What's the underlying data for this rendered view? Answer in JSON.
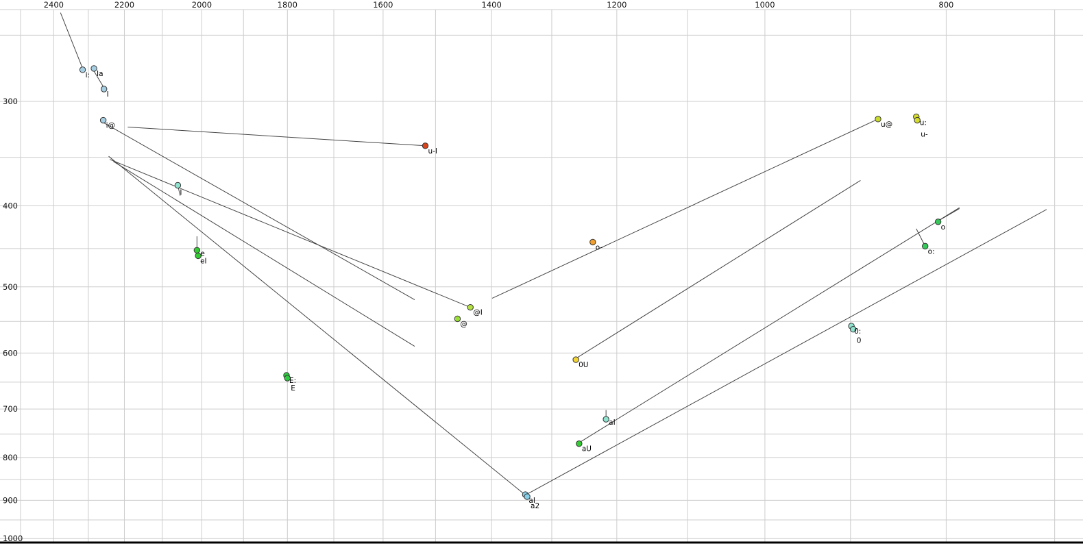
{
  "chart_data": {
    "type": "scatter",
    "title": "",
    "xlabel": "",
    "ylabel": "",
    "description": "Vowel formant plot: F2 (Hz) on reversed log x-axis, F1 (Hz) on reversed log y-axis; labelled vowel tokens with diphthong trajectory lines",
    "x_axis": {
      "scale": "log",
      "reversed": true,
      "domain": [
        2564,
        676
      ],
      "tick_labels": [
        2400,
        2200,
        2000,
        1800,
        1600,
        1400,
        1200,
        1000,
        800
      ],
      "grid_values": [
        2500,
        2400,
        2300,
        2200,
        2100,
        2000,
        1900,
        1800,
        1700,
        1600,
        1500,
        1400,
        1300,
        1200,
        1100,
        1000,
        900,
        800,
        700
      ]
    },
    "y_axis": {
      "scale": "log",
      "reversed": true,
      "domain": [
        233,
        1011
      ],
      "tick_labels": [
        300,
        400,
        500,
        600,
        700,
        800,
        900,
        1000
      ],
      "grid_values": [
        250,
        300,
        350,
        400,
        450,
        500,
        550,
        600,
        650,
        700,
        750,
        800,
        850,
        900,
        950,
        1000
      ]
    },
    "colors": {
      "grid": "#cccccc",
      "segment": "#444444",
      "tick_text": "#111111",
      "point_stroke": "#333333",
      "label_text": "#000000",
      "baseline": "#000000"
    },
    "points": [
      {
        "label": "i:",
        "f2": 2316,
        "f1": 275,
        "color": "#a6cee3"
      },
      {
        "label": "Ia",
        "f2": 2284,
        "f1": 274,
        "color": "#a6cee3"
      },
      {
        "label": "I",
        "f2": 2256,
        "f1": 290,
        "color": "#a6cee3"
      },
      {
        "label": "i@",
        "f2": 2258,
        "f1": 316,
        "color": "#a6cee3"
      },
      {
        "label": "u-I",
        "f2": 1519,
        "f1": 339,
        "color": "#d9441a"
      },
      {
        "label": "I",
        "f2": 2060,
        "f1": 378,
        "color": "#8fe3cf",
        "label_offset": [
          3,
          14
        ]
      },
      {
        "label": "e",
        "f2": 2012,
        "f1": 452,
        "color": "#33cc33",
        "label_offset": [
          5,
          8
        ]
      },
      {
        "label": "eI",
        "f2": 2009,
        "f1": 459,
        "color": "#33cc33",
        "label_offset": [
          3,
          11
        ]
      },
      {
        "label": "@I",
        "f2": 1437,
        "f1": 529,
        "color": "#b5e045"
      },
      {
        "label": "@",
        "f2": 1460,
        "f1": 546,
        "color": "#9be034"
      },
      {
        "label": "E:",
        "f2": 1802,
        "f1": 638,
        "color": "#2ecc40"
      },
      {
        "label": "E",
        "f2": 1800,
        "f1": 643,
        "color": "#2ecc40",
        "label_offset": [
          5,
          18
        ]
      },
      {
        "label": "o-",
        "f2": 1236,
        "f1": 442,
        "color": "#f0a030"
      },
      {
        "label": "0U",
        "f2": 1262,
        "f1": 611,
        "color": "#f2d434"
      },
      {
        "label": "aU",
        "f2": 1257,
        "f1": 770,
        "color": "#33cc33"
      },
      {
        "label": "aI",
        "f2": 1216,
        "f1": 720,
        "color": "#8fe3cf",
        "label_offset": [
          4,
          8
        ]
      },
      {
        "label": "aI",
        "f2": 1343,
        "f1": 886,
        "color": "#86cfe8",
        "label_offset": [
          5,
          12
        ]
      },
      {
        "label": "a2",
        "f2": 1340,
        "f1": 891,
        "color": "#86cfe8",
        "label_offset": [
          5,
          17
        ]
      },
      {
        "label": "u@",
        "f2": 870,
        "f1": 315,
        "color": "#c9dc2e"
      },
      {
        "label": "u:",
        "f2": 830,
        "f1": 313,
        "color": "#d4dc2e",
        "label_offset": [
          5,
          12
        ]
      },
      {
        "label": "u-",
        "f2": 829,
        "f1": 316,
        "color": "#d4dc2e",
        "label_offset": [
          5,
          24
        ]
      },
      {
        "label": "o",
        "f2": 808,
        "f1": 418,
        "color": "#35c95a"
      },
      {
        "label": "o:",
        "f2": 821,
        "f1": 447,
        "color": "#35c95a"
      },
      {
        "label": "0:",
        "f2": 899,
        "f1": 557,
        "color": "#8fe3cf"
      },
      {
        "label": "0",
        "f2": 897,
        "f1": 562,
        "color": "#8fe3cf",
        "label_offset": [
          5,
          20
        ]
      }
    ],
    "segments": [
      {
        "from": [
          2380,
          235
        ],
        "to": [
          2316,
          274
        ]
      },
      {
        "from": [
          2284,
          276
        ],
        "to": [
          2256,
          289
        ]
      },
      {
        "from": [
          1519,
          339
        ],
        "to": [
          2191,
          322
        ]
      },
      {
        "from": [
          1437,
          529
        ],
        "to": [
          2240,
          352
        ]
      },
      {
        "from": [
          2258,
          318
        ],
        "to": [
          1539,
          518
        ]
      },
      {
        "from": [
          2230,
          354
        ],
        "to": [
          1539,
          589
        ]
      },
      {
        "from": [
          2243,
          349
        ],
        "to": [
          1343,
          887
        ]
      },
      {
        "from": [
          2012,
          435
        ],
        "to": [
          2012,
          451
        ]
      },
      {
        "from": [
          2059,
          380
        ],
        "to": [
          2054,
          389
        ]
      },
      {
        "from": [
          1216,
          702
        ],
        "to": [
          1216,
          719
        ]
      },
      {
        "from": [
          830,
          426
        ],
        "to": [
          821,
          447
        ]
      },
      {
        "from": [
          808,
          417
        ],
        "to": [
          787,
          403
        ]
      },
      {
        "from": [
          870,
          315
        ],
        "to": [
          1399,
          516
        ]
      },
      {
        "from": [
          1262,
          609
        ],
        "to": [
          889,
          373
        ]
      },
      {
        "from": [
          1257,
          768
        ],
        "to": [
          787,
          402
        ]
      },
      {
        "from": [
          1339,
          884
        ],
        "to": [
          707,
          404
        ]
      }
    ]
  }
}
